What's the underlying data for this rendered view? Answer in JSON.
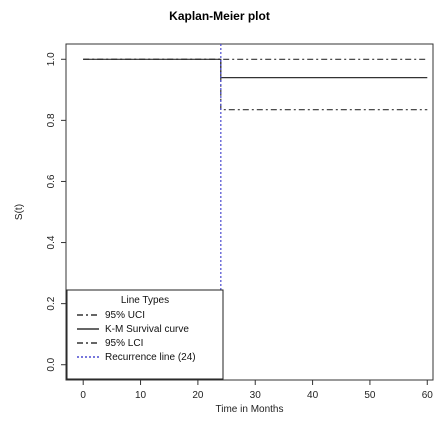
{
  "chart_data": {
    "type": "line",
    "title": "Kaplan-Meier plot",
    "xlabel": "Time in Months",
    "ylabel": "S(t)",
    "xlim": [
      -3,
      61
    ],
    "ylim": [
      -0.05,
      1.05
    ],
    "x_ticks": [
      "0",
      "10",
      "20",
      "30",
      "40",
      "50",
      "60"
    ],
    "y_ticks": [
      "0.0",
      "0.2",
      "0.4",
      "0.6",
      "0.8",
      "1.0"
    ],
    "series": [
      {
        "name": "95% UCI",
        "style": "dashdot",
        "color": "#333333",
        "points": [
          [
            0,
            1.0
          ],
          [
            24,
            1.0
          ],
          [
            24,
            1.0
          ],
          [
            60,
            1.0
          ]
        ]
      },
      {
        "name": "K-M Survival curve",
        "style": "solid",
        "color": "#333333",
        "points": [
          [
            0,
            1.0
          ],
          [
            24,
            1.0
          ],
          [
            24,
            0.94
          ],
          [
            60,
            0.94
          ]
        ]
      },
      {
        "name": "95% LCI",
        "style": "dashdot",
        "color": "#333333",
        "points": [
          [
            0,
            1.0
          ],
          [
            24,
            1.0
          ],
          [
            24,
            0.835
          ],
          [
            60,
            0.835
          ]
        ]
      },
      {
        "name": "Recurrence line (24)",
        "style": "dotted",
        "color": "#4a4ad0",
        "vline_x": 24
      }
    ],
    "legend": {
      "title": "Line Types",
      "position": "bottom-left",
      "entries": [
        "95% UCI",
        "K-M Survival curve",
        "95% LCI",
        "Recurrence line (24)"
      ]
    }
  }
}
